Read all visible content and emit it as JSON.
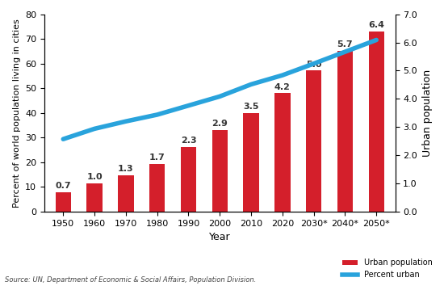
{
  "chart_data": {
    "type": "bar",
    "x_label": "Year",
    "y_label": "Percent of world population living in cities",
    "y2_label": "Urban population",
    "source": "Source: UN, Department of Economic & Social Affairs, Population Division.",
    "categories": [
      "1950",
      "1960",
      "1970",
      "1980",
      "1990",
      "2000",
      "2010",
      "2020",
      "2030*",
      "2040*",
      "2050*"
    ],
    "series": [
      {
        "name": "Urban population",
        "type": "bar",
        "axis": "y2",
        "color": "#d41f2b",
        "values": [
          0.7,
          1.0,
          1.3,
          1.7,
          2.3,
          2.9,
          3.5,
          4.2,
          5.0,
          5.7,
          6.4
        ],
        "value_labels": [
          "0.7",
          "1.0",
          "1.3",
          "1.7",
          "2.3",
          "2.9",
          "3.5",
          "4.2",
          "5.0",
          "5.7",
          "6.4"
        ],
        "data_labels": true
      },
      {
        "name": "Percent urban",
        "type": "line",
        "color": "#29a3dc",
        "values": [
          29.4,
          33.6,
          36.6,
          39.3,
          43.0,
          46.7,
          51.6,
          55.3,
          60.0,
          64.8,
          69.6
        ]
      }
    ],
    "ylim": [
      0,
      80
    ],
    "yticks": [
      0,
      10,
      20,
      30,
      40,
      50,
      60,
      70,
      80
    ],
    "y2lim": [
      0,
      7
    ],
    "y2ticks": [
      {
        "value": 0,
        "label": "0.0"
      },
      {
        "value": 1,
        "label": "1.0"
      },
      {
        "value": 2,
        "label": "2.0"
      },
      {
        "value": 3,
        "label": "3.0"
      },
      {
        "value": 4,
        "label": "4.0"
      },
      {
        "value": 5,
        "label": "5.0"
      },
      {
        "value": 6,
        "label": "6.0"
      },
      {
        "value": 7,
        "label": "7.0"
      }
    ],
    "legend": "lower right",
    "grid": false
  }
}
